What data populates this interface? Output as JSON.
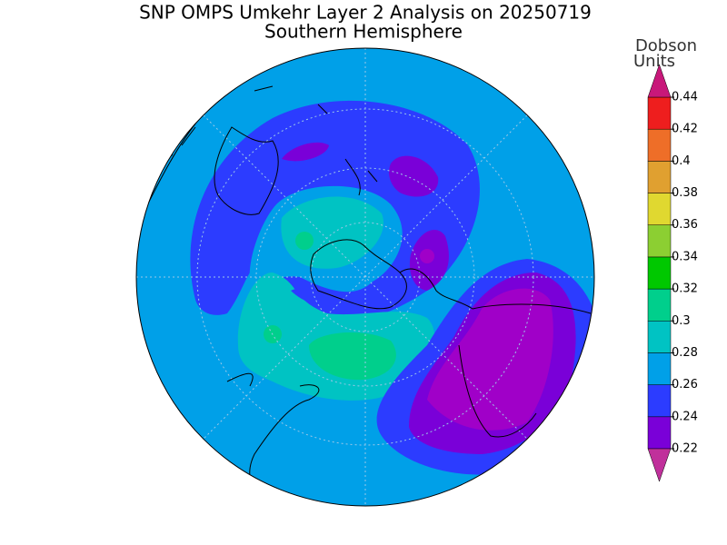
{
  "header": {
    "title": "SNP OMPS Umkehr Layer 2 Analysis on 20250719",
    "subtitle": "Southern Hemisphere"
  },
  "colorbar": {
    "label_lines": [
      "Dobson",
      "Units"
    ],
    "ticks": [
      0.22,
      0.24,
      0.26,
      0.28,
      0.3,
      0.32,
      0.34,
      0.36,
      0.38,
      0.4,
      0.42,
      0.44
    ],
    "under_color": "#c0309b",
    "band_colors": [
      "#7a00d8",
      "#2c3cff",
      "#00a0e8",
      "#00c3c3",
      "#00cf8c",
      "#00c800",
      "#8ccf32",
      "#e0d830",
      "#e0a030",
      "#ee6e28",
      "#ee1e1e"
    ],
    "over_color": "#c8187a"
  }
}
